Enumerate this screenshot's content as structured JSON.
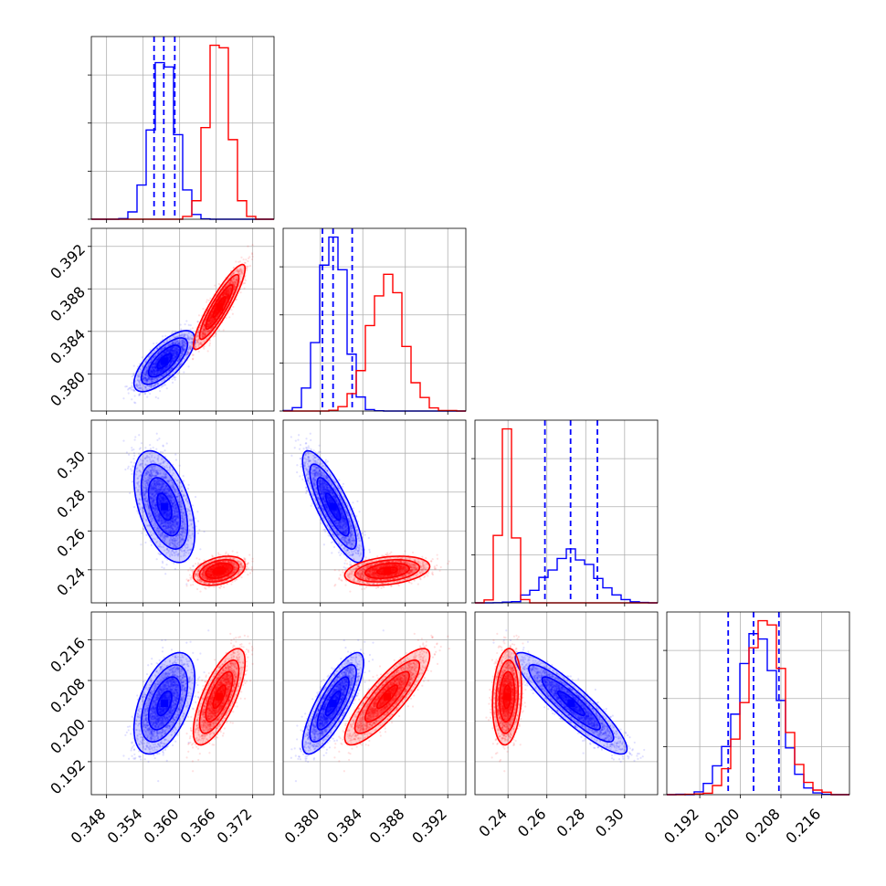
{
  "colors": {
    "series_a": "#0000ff",
    "series_b": "#ff0000",
    "grid": "#b0b0b0",
    "frame": "#000000"
  },
  "chart_data": {
    "type": "corner",
    "grid": true,
    "parameters": [
      {
        "range": [
          0.3455,
          0.3755
        ],
        "ticks": [
          "0.348",
          "0.354",
          "0.360",
          "0.366",
          "0.372"
        ]
      },
      {
        "range": [
          0.3765,
          0.3937
        ],
        "ticks": [
          "0.380",
          "0.384",
          "0.388",
          "0.392"
        ]
      },
      {
        "range": [
          0.223,
          0.317
        ],
        "ticks": [
          "0.24",
          "0.26",
          "0.28",
          "0.30"
        ]
      },
      {
        "range": [
          0.1855,
          0.2215
        ],
        "ticks": [
          "0.192",
          "0.200",
          "0.208",
          "0.216"
        ]
      }
    ],
    "series": [
      {
        "color": "blue",
        "means": [
          0.3575,
          0.3812,
          0.2725,
          0.2035
        ],
        "sds": [
          0.002,
          0.00115,
          0.0115,
          0.004
        ],
        "correlations": [
          [
            1,
            0.72,
            -0.48,
            0.5
          ],
          [
            0.72,
            1,
            -0.82,
            0.8
          ],
          [
            -0.48,
            -0.82,
            1,
            -0.9
          ],
          [
            0.5,
            0.8,
            -0.9,
            1
          ]
        ],
        "quantile_lines": [
          [
            0.3558,
            0.3574,
            0.3592
          ],
          [
            0.3802,
            0.3812,
            0.383
          ],
          [
            0.259,
            0.2722,
            0.286
          ],
          [
            0.1976,
            0.2026,
            0.2076
          ]
        ]
      },
      {
        "color": "red",
        "means": [
          0.3665,
          0.3863,
          0.2395,
          0.2048
        ],
        "sds": [
          0.0017,
          0.0016,
          0.003,
          0.0038
        ],
        "correlations": [
          [
            1,
            0.9,
            0.35,
            0.72
          ],
          [
            0.9,
            1,
            0.3,
            0.85
          ],
          [
            0.35,
            0.3,
            1,
            0.15
          ],
          [
            0.72,
            0.85,
            0.15,
            1
          ]
        ],
        "quantile_lines": []
      }
    ]
  }
}
